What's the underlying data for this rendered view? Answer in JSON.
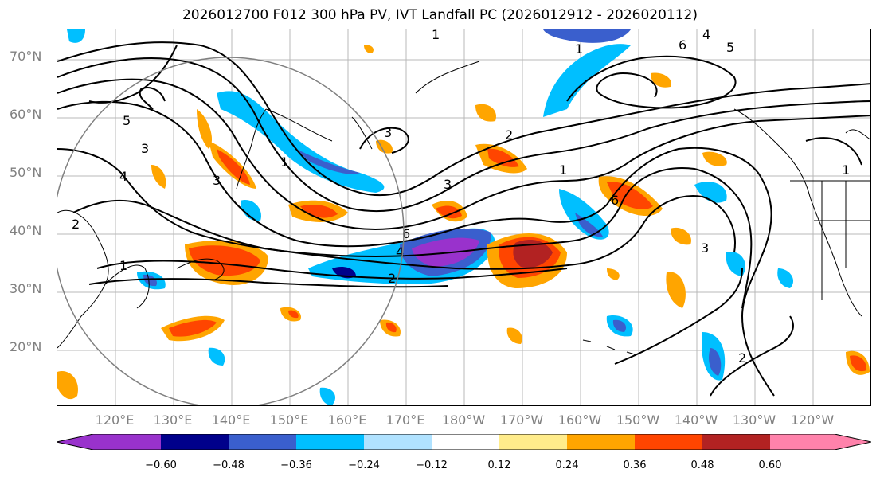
{
  "title": "2026012700 F012 300 hPa PV, IVT Landfall PC (2026012912 - 2026020112)",
  "map": {
    "lat_labels": [
      "70°N",
      "60°N",
      "50°N",
      "40°N",
      "30°N",
      "20°N"
    ],
    "lon_labels": [
      "120°E",
      "130°E",
      "140°E",
      "150°E",
      "160°E",
      "170°E",
      "180°W",
      "170°W",
      "160°W",
      "150°W",
      "140°W",
      "130°W",
      "120°W"
    ],
    "contour_labels": [
      "1",
      "2",
      "3",
      "4",
      "5",
      "6"
    ],
    "grid_color": "#b0b0b0"
  },
  "colorbar": {
    "ticks": [
      "−0.60",
      "−0.48",
      "−0.36",
      "−0.24",
      "−0.12",
      "0.12",
      "0.24",
      "0.36",
      "0.48",
      "0.60"
    ],
    "colors": [
      "#9932cc",
      "#00008b",
      "#3a5fcd",
      "#00bfff",
      "#b0e2ff",
      "#ffffff",
      "#ffec8b",
      "#ffa500",
      "#ff4500",
      "#b22222",
      "#ff82ab"
    ]
  }
}
